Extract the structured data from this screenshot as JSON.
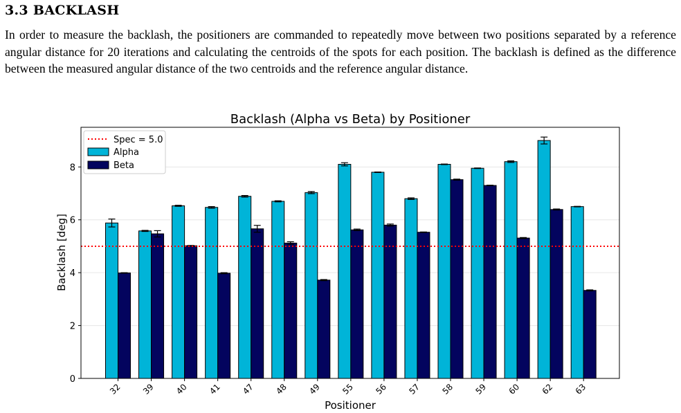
{
  "section": {
    "number": "3.3",
    "title": "BACKLASH",
    "heading": "3.3 BACKLASH"
  },
  "body_text": "In order to measure the backlash, the positioners are commanded to repeatedly move between two positions separated by a reference angular distance for 20 iterations and calculating the centroids of the spots for each position. The backlash is defined as the difference between the measured angular distance of the two centroids and the reference angular distance.",
  "chart_data": {
    "type": "bar",
    "title": "Backlash (Alpha vs Beta) by Positioner",
    "xlabel": "Positioner",
    "ylabel": "Backlash [deg]",
    "ylim": [
      0,
      9.5
    ],
    "yticks": [
      0,
      2,
      4,
      6,
      8
    ],
    "grid": true,
    "legend_position": "top-left",
    "categories": [
      "32",
      "39",
      "40",
      "41",
      "47",
      "48",
      "49",
      "55",
      "56",
      "57",
      "58",
      "59",
      "60",
      "62",
      "63"
    ],
    "series": [
      {
        "name": "Alpha",
        "color": "#00b4d8",
        "values": [
          5.88,
          5.58,
          6.53,
          6.47,
          6.89,
          6.7,
          7.03,
          8.1,
          7.8,
          6.8,
          8.1,
          7.95,
          8.2,
          9.0,
          6.5
        ],
        "errors": [
          0.15,
          0.02,
          0.02,
          0.03,
          0.03,
          0.02,
          0.04,
          0.06,
          0.01,
          0.03,
          0.01,
          0.01,
          0.03,
          0.13,
          0.01
        ]
      },
      {
        "name": "Beta",
        "color": "#03045e",
        "values": [
          3.99,
          5.47,
          5.02,
          3.98,
          5.66,
          5.12,
          3.72,
          5.62,
          5.8,
          5.53,
          7.52,
          7.3,
          5.31,
          6.39,
          3.33
        ],
        "errors": [
          0.01,
          0.12,
          0.01,
          0.02,
          0.13,
          0.05,
          0.02,
          0.03,
          0.04,
          0.01,
          0.02,
          0.01,
          0.02,
          0.02,
          0.02
        ]
      }
    ],
    "reference_line": {
      "label": "Spec = 5.0",
      "value": 5.0,
      "color": "#ff0000",
      "style": "dotted"
    }
  }
}
